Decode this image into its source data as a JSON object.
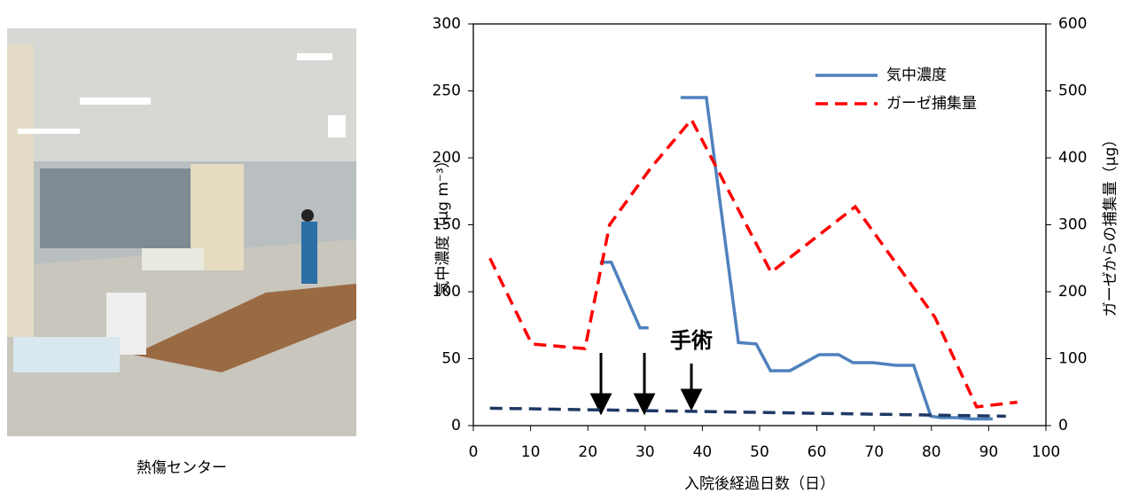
{
  "caption": "熱傷センター",
  "chart_data": {
    "type": "line",
    "x_label": "入院後経過日数（日）",
    "y_label": "気中濃度（μg m⁻³）",
    "y2_label": "ガーゼからの捕集量（μg）",
    "annotation": "手術",
    "xlim": [
      0,
      100
    ],
    "xticks": [
      0,
      10,
      20,
      30,
      40,
      50,
      60,
      70,
      80,
      90,
      100
    ],
    "ylim": [
      0,
      300
    ],
    "yticks": [
      0,
      50,
      100,
      150,
      200,
      250,
      300
    ],
    "y2lim": [
      0,
      600
    ],
    "y2ticks": [
      0,
      100,
      200,
      300,
      400,
      500,
      600
    ],
    "legend": "top-right",
    "series": [
      {
        "name": "気中濃度",
        "color": "#4f81bd",
        "style": "solid",
        "x": [
          22.1,
          24.1,
          29.1,
          30.6,
          31.4,
          36.2,
          40.7,
          46.3,
          49.4,
          51.9,
          55.3,
          60.4,
          63.8,
          66.3,
          69.8,
          73.8,
          76.9,
          79.9,
          81.7,
          84.2,
          87,
          90.7
        ],
        "values": [
          122,
          122,
          73,
          73,
          null,
          245,
          245,
          62,
          61,
          41,
          41,
          53,
          53,
          47,
          47,
          45,
          45,
          7,
          6,
          6,
          5,
          5
        ]
      },
      {
        "name": "ガーゼ捕集量",
        "color": "#ff0000",
        "style": "dashed",
        "axis": "y2",
        "x": [
          2.9,
          10.2,
          19.5,
          23.8,
          31,
          38.1,
          52,
          66.7,
          80.6,
          87.9,
          95
        ],
        "values": [
          250,
          122,
          115,
          300,
          385,
          457,
          229,
          327,
          162,
          28,
          35
        ]
      },
      {
        "color": "#1f3864",
        "style": "dashed",
        "x": [
          2.9,
          93
        ],
        "values": [
          13,
          7
        ]
      }
    ]
  }
}
